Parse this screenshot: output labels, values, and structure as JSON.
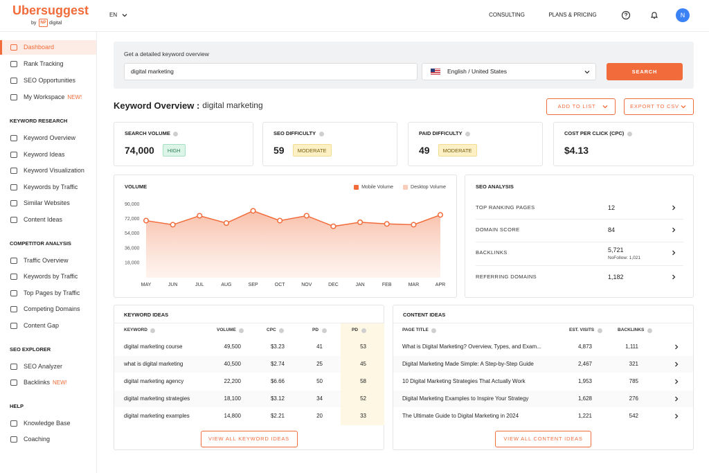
{
  "header": {
    "logo": "Ubersuggest",
    "by": "by",
    "np": "NP",
    "digital": "digital",
    "language": "EN",
    "nav": [
      "CONSULTING",
      "PLANS & PRICING"
    ],
    "avatar": "N"
  },
  "sidebar": {
    "top": [
      {
        "label": "Dashboard"
      },
      {
        "label": "Rank Tracking"
      },
      {
        "label": "SEO Opportunities"
      },
      {
        "label": "My Workspace",
        "badge": "NEW!"
      }
    ],
    "sections": [
      {
        "title": "KEYWORD RESEARCH",
        "items": [
          {
            "label": "Keyword Overview"
          },
          {
            "label": "Keyword Ideas"
          },
          {
            "label": "Keyword Visualization"
          },
          {
            "label": "Keywords by Traffic"
          },
          {
            "label": "Similar Websites"
          },
          {
            "label": "Content Ideas"
          }
        ]
      },
      {
        "title": "COMPETITOR ANALYSIS",
        "items": [
          {
            "label": "Traffic Overview"
          },
          {
            "label": "Keywords by Traffic"
          },
          {
            "label": "Top Pages by Traffic"
          },
          {
            "label": "Competing Domains"
          },
          {
            "label": "Content Gap"
          }
        ]
      },
      {
        "title": "SEO EXPLORER",
        "items": [
          {
            "label": "SEO Analyzer"
          },
          {
            "label": "Backlinks",
            "badge": "NEW!"
          }
        ]
      },
      {
        "title": "HELP",
        "items": [
          {
            "label": "Knowledge Base"
          },
          {
            "label": "Coaching"
          }
        ]
      }
    ]
  },
  "search": {
    "prompt": "Get a detailed keyword overview",
    "query": "digital marketing",
    "location": "English / United States",
    "button": "SEARCH"
  },
  "overview": {
    "title": "Keyword Overview :",
    "keyword": "digital marketing",
    "buttons": [
      "ADD TO LIST",
      "EXPORT TO CSV"
    ]
  },
  "metrics": [
    {
      "label": "SEARCH VOLUME",
      "value": "74,000",
      "badge": "HIGH"
    },
    {
      "label": "SEO DIFFICULTY",
      "value": "59",
      "badge": "MODERATE"
    },
    {
      "label": "PAID DIFFICULTY",
      "value": "49",
      "badge": "MODERATE"
    },
    {
      "label": "COST PER CLICK (CPC)",
      "value": "$4.13"
    }
  ],
  "chart_data": {
    "type": "line",
    "title": "VOLUME",
    "area": true,
    "categories": [
      "MAY",
      "JUN",
      "JUL",
      "AUG",
      "SEP",
      "OCT",
      "NOV",
      "DEC",
      "JAN",
      "FEB",
      "MAR",
      "APR"
    ],
    "series": [
      {
        "name": "Mobile Volume",
        "color": "#f26b3a",
        "values": [
          70000,
          65000,
          76000,
          67000,
          82000,
          70000,
          76000,
          63000,
          68000,
          66000,
          65000,
          77000
        ]
      },
      {
        "name": "Desktop Volume",
        "color": "#f9cdb9",
        "values": [
          null,
          null,
          null,
          null,
          null,
          null,
          null,
          null,
          null,
          null,
          null,
          null
        ]
      }
    ],
    "ylim": [
      0,
      90000
    ],
    "yticks": [
      {
        "value": 18000,
        "label": "18,000"
      },
      {
        "value": 36000,
        "label": "36,000"
      },
      {
        "value": 54000,
        "label": "54,000"
      },
      {
        "value": 72000,
        "label": "72,000"
      },
      {
        "value": 90000,
        "label": "90,000"
      }
    ]
  },
  "seo_analysis": {
    "title": "SEO ANALYSIS",
    "rows": [
      {
        "label": "TOP RANKING PAGES",
        "value": "12"
      },
      {
        "label": "DOMAIN SCORE",
        "value": "84"
      },
      {
        "label": "BACKLINKS",
        "value": "5,721",
        "note": "NoFollow: 1,021"
      },
      {
        "label": "REFERRING DOMAINS",
        "value": "1,182"
      }
    ]
  },
  "keyword_ideas": {
    "title": "KEYWORD IDEAS",
    "columns": [
      "KEYWORD",
      "VOLUME",
      "CPC",
      "PD",
      "PD"
    ],
    "rows": [
      [
        "digital marketing course",
        "49,500",
        "$3.23",
        "41",
        "53"
      ],
      [
        "what is digital marketing",
        "40,500",
        "$2.74",
        "25",
        "45"
      ],
      [
        "digital marketing agency",
        "22,200",
        "$6.66",
        "50",
        "58"
      ],
      [
        "digital marketing strategies",
        "18,100",
        "$3.12",
        "34",
        "52"
      ],
      [
        "digital marketing examples",
        "14,800",
        "$2.21",
        "20",
        "33"
      ]
    ],
    "button": "VIEW ALL KEYWORD IDEAS"
  },
  "content_ideas": {
    "title": "CONTENT IDEAS",
    "columns": [
      "PAGE TITLE",
      "EST. VISITS",
      "BACKLINKS"
    ],
    "rows": [
      [
        "What is Digital Marketing? Overview, Types, and Exam...",
        "4,873",
        "1,111"
      ],
      [
        "Digital Marketing Made Simple: A Step-by-Step Guide",
        "2,467",
        "321"
      ],
      [
        "10 Digital Marketing Strategies That Actually Work",
        "1,953",
        "785"
      ],
      [
        "Digital Marketing Examples to Inspire Your Strategy",
        "1,628",
        "276"
      ],
      [
        "The Ultimate Guide to Digital Marketing in 2024",
        "1,221",
        "542"
      ]
    ],
    "button": "VIEW ALL CONTENT IDEAS"
  }
}
